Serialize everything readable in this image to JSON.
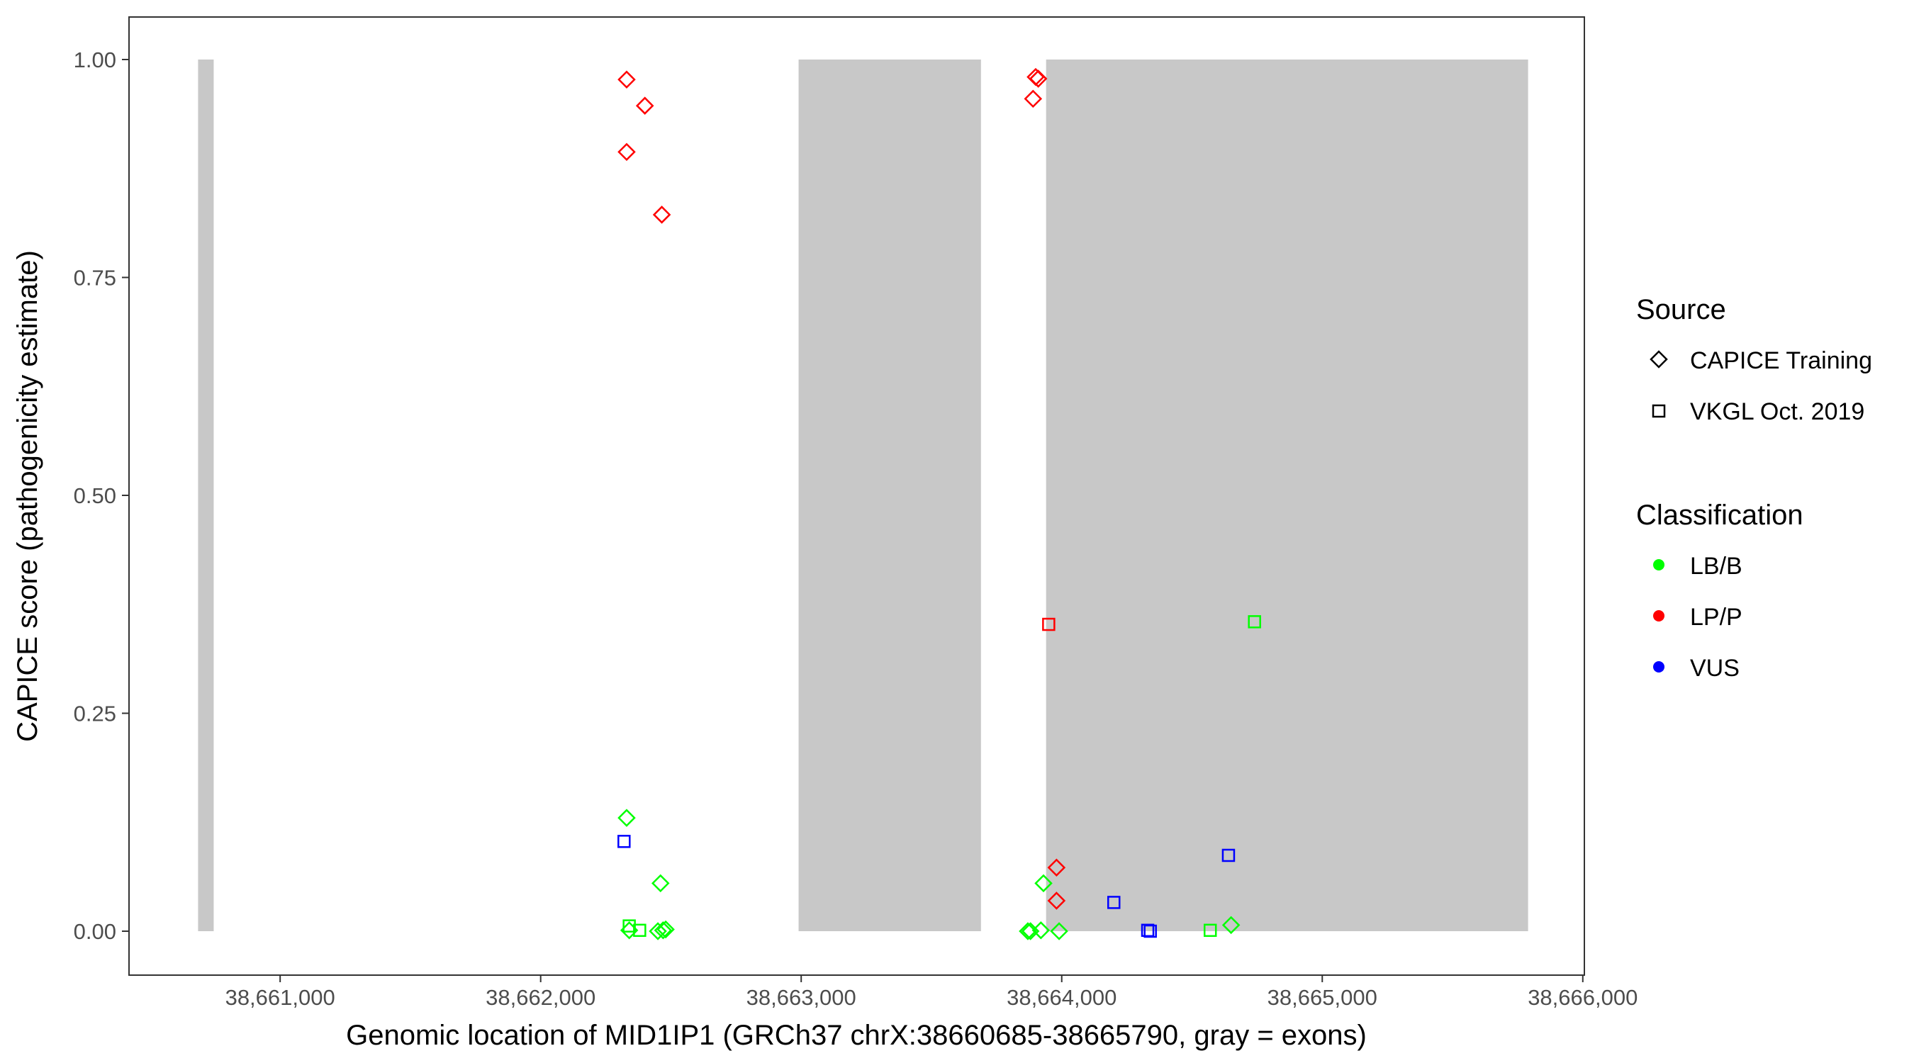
{
  "chart_data": {
    "type": "scatter",
    "xlabel": "Genomic location of MID1IP1 (GRCh37 chrX:38660685-38665790, gray = exons)",
    "ylabel": "CAPICE score (pathogenicity estimate)",
    "xlim": [
      38660685,
      38665790
    ],
    "ylim": [
      0,
      1
    ],
    "x_ticks": [
      38661000,
      38662000,
      38663000,
      38664000,
      38665000,
      38666000
    ],
    "x_tick_labels": [
      "38,661,000",
      "38,662,000",
      "38,663,000",
      "38,664,000",
      "38,665,000",
      "38,666,000"
    ],
    "y_ticks": [
      0,
      0.25,
      0.5,
      0.75,
      1.0
    ],
    "y_tick_labels": [
      "0.00",
      "0.25",
      "0.50",
      "0.75",
      "1.00"
    ],
    "grid": false,
    "legend_position": "right",
    "exons": [
      {
        "start": 38660685,
        "end": 38660745
      },
      {
        "start": 38662990,
        "end": 38663690
      },
      {
        "start": 38663940,
        "end": 38665790
      }
    ],
    "colors": {
      "LB/B": "#00ff00",
      "LP/P": "#ff0000",
      "VUS": "#0000ff",
      "exon": "#c8c8c8"
    },
    "legend": {
      "source_title": "Source",
      "source_items": [
        {
          "label": "CAPICE Training",
          "shape": "diamond"
        },
        {
          "label": "VKGL Oct. 2019",
          "shape": "square"
        }
      ],
      "class_title": "Classification",
      "class_items": [
        {
          "label": "LB/B",
          "color": "#00ff00"
        },
        {
          "label": "LP/P",
          "color": "#ff0000"
        },
        {
          "label": "VUS",
          "color": "#0000ff"
        }
      ]
    },
    "points": [
      {
        "x": 38662330,
        "y": 0.977,
        "source": "CAPICE Training",
        "class": "LP/P"
      },
      {
        "x": 38662400,
        "y": 0.947,
        "source": "CAPICE Training",
        "class": "LP/P"
      },
      {
        "x": 38662330,
        "y": 0.894,
        "source": "CAPICE Training",
        "class": "LP/P"
      },
      {
        "x": 38662465,
        "y": 0.822,
        "source": "CAPICE Training",
        "class": "LP/P"
      },
      {
        "x": 38663900,
        "y": 0.98,
        "source": "CAPICE Training",
        "class": "LP/P"
      },
      {
        "x": 38663910,
        "y": 0.978,
        "source": "CAPICE Training",
        "class": "LP/P"
      },
      {
        "x": 38663890,
        "y": 0.955,
        "source": "CAPICE Training",
        "class": "LP/P"
      },
      {
        "x": 38663980,
        "y": 0.073,
        "source": "CAPICE Training",
        "class": "LP/P"
      },
      {
        "x": 38663980,
        "y": 0.035,
        "source": "CAPICE Training",
        "class": "LP/P"
      },
      {
        "x": 38663950,
        "y": 0.352,
        "source": "VKGL Oct. 2019",
        "class": "LP/P"
      },
      {
        "x": 38662330,
        "y": 0.13,
        "source": "CAPICE Training",
        "class": "LB/B"
      },
      {
        "x": 38662460,
        "y": 0.055,
        "source": "CAPICE Training",
        "class": "LB/B"
      },
      {
        "x": 38662340,
        "y": 0.001,
        "source": "CAPICE Training",
        "class": "LB/B"
      },
      {
        "x": 38662450,
        "y": 0.0,
        "source": "CAPICE Training",
        "class": "LB/B"
      },
      {
        "x": 38662470,
        "y": 0.001,
        "source": "CAPICE Training",
        "class": "LB/B"
      },
      {
        "x": 38662480,
        "y": 0.002,
        "source": "CAPICE Training",
        "class": "LB/B"
      },
      {
        "x": 38662340,
        "y": 0.006,
        "source": "VKGL Oct. 2019",
        "class": "LB/B"
      },
      {
        "x": 38662380,
        "y": 0.001,
        "source": "VKGL Oct. 2019",
        "class": "LB/B"
      },
      {
        "x": 38663870,
        "y": 0.0,
        "source": "CAPICE Training",
        "class": "LB/B"
      },
      {
        "x": 38663880,
        "y": 0.0,
        "source": "CAPICE Training",
        "class": "LB/B"
      },
      {
        "x": 38663920,
        "y": 0.001,
        "source": "CAPICE Training",
        "class": "LB/B"
      },
      {
        "x": 38663990,
        "y": 0.0,
        "source": "CAPICE Training",
        "class": "LB/B"
      },
      {
        "x": 38663930,
        "y": 0.055,
        "source": "CAPICE Training",
        "class": "LB/B"
      },
      {
        "x": 38664650,
        "y": 0.007,
        "source": "CAPICE Training",
        "class": "LB/B"
      },
      {
        "x": 38664570,
        "y": 0.001,
        "source": "VKGL Oct. 2019",
        "class": "LB/B"
      },
      {
        "x": 38664740,
        "y": 0.355,
        "source": "VKGL Oct. 2019",
        "class": "LB/B"
      },
      {
        "x": 38662320,
        "y": 0.103,
        "source": "VKGL Oct. 2019",
        "class": "VUS"
      },
      {
        "x": 38664200,
        "y": 0.033,
        "source": "VKGL Oct. 2019",
        "class": "VUS"
      },
      {
        "x": 38664340,
        "y": 0.0,
        "source": "VKGL Oct. 2019",
        "class": "VUS"
      },
      {
        "x": 38664330,
        "y": 0.001,
        "source": "VKGL Oct. 2019",
        "class": "VUS"
      },
      {
        "x": 38664640,
        "y": 0.087,
        "source": "VKGL Oct. 2019",
        "class": "VUS"
      }
    ]
  }
}
